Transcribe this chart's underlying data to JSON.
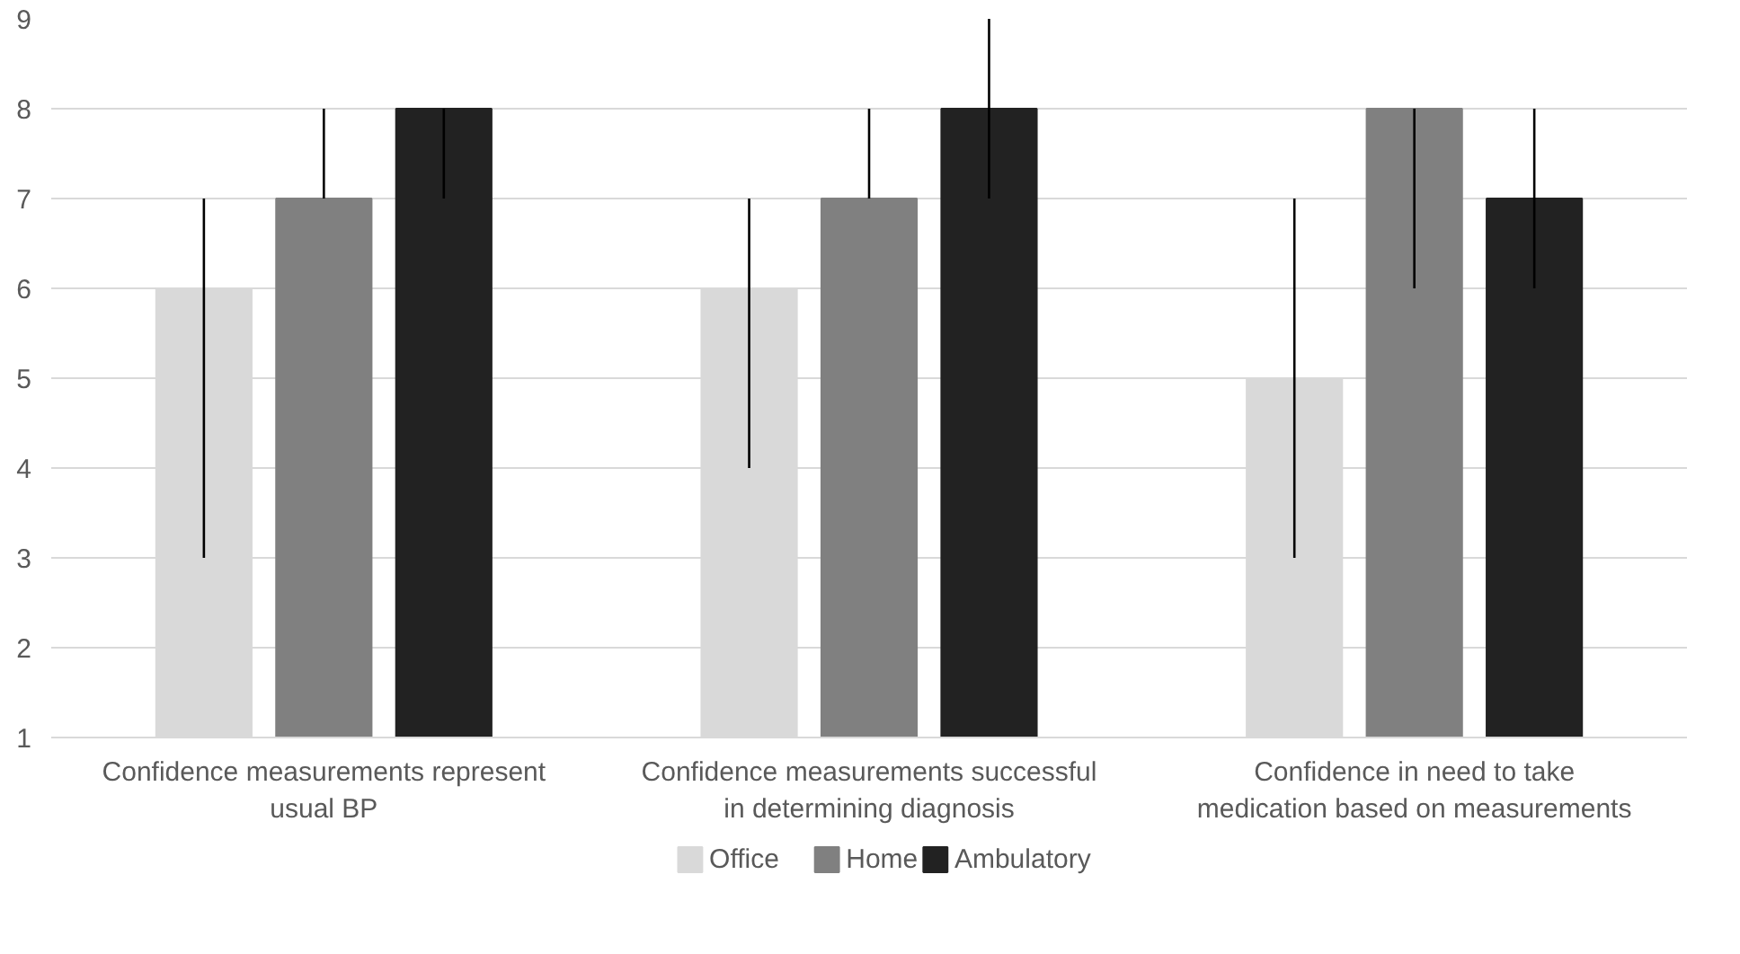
{
  "chart_data": {
    "type": "bar",
    "categories": [
      "Confidence measurements represent usual BP",
      "Confidence measurements successful in determining diagnosis",
      "Confidence in need to take medication based on measurements"
    ],
    "series": [
      {
        "name": "Office",
        "color": "#d9d9d9",
        "values": [
          6,
          6,
          5
        ],
        "errors": [
          [
            3,
            7
          ],
          [
            4,
            7
          ],
          [
            3,
            7
          ]
        ]
      },
      {
        "name": "Home",
        "color": "#808080",
        "values": [
          7,
          7,
          8
        ],
        "errors": [
          [
            7,
            8
          ],
          [
            7,
            8
          ],
          [
            6,
            8
          ]
        ]
      },
      {
        "name": "Ambulatory",
        "color": "#222222",
        "values": [
          8,
          8,
          7
        ],
        "errors": [
          [
            7,
            8
          ],
          [
            7,
            9
          ],
          [
            6,
            8
          ]
        ]
      }
    ],
    "ylim": [
      1,
      9
    ],
    "yticks": [
      1,
      2,
      3,
      4,
      5,
      6,
      7,
      8,
      9
    ],
    "grid": "y",
    "legend": "bottom"
  }
}
